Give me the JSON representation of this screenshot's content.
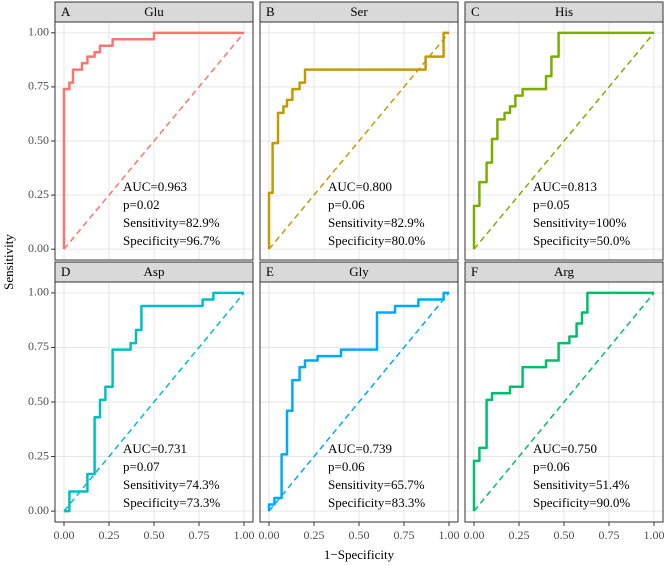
{
  "x_label": "1−Specificity",
  "y_label": "Sensitivity",
  "chart_data": [
    {
      "type": "line",
      "label": "A",
      "title": "Glu",
      "color": "#F8766D",
      "x": [
        0,
        0,
        0.03,
        0.03,
        0.05,
        0.05,
        0.1,
        0.1,
        0.13,
        0.13,
        0.17,
        0.17,
        0.2,
        0.2,
        0.27,
        0.27,
        0.5,
        0.5,
        1
      ],
      "y": [
        0,
        0.74,
        0.74,
        0.77,
        0.77,
        0.83,
        0.83,
        0.86,
        0.86,
        0.89,
        0.89,
        0.91,
        0.91,
        0.94,
        0.94,
        0.97,
        0.97,
        1,
        1
      ],
      "xlim": [
        -0.05,
        1.05
      ],
      "ylim": [
        -0.05,
        1.05
      ],
      "xticks": [
        {
          "value": 0,
          "label": "0.00"
        },
        {
          "value": 0.25,
          "label": "0.25"
        },
        {
          "value": 0.5,
          "label": "0.50"
        },
        {
          "value": 0.75,
          "label": "0.75"
        },
        {
          "value": 1,
          "label": "1.00"
        }
      ],
      "yticks": [
        {
          "value": 0,
          "label": "0.00"
        },
        {
          "value": 0.25,
          "label": "0.25"
        },
        {
          "value": 0.5,
          "label": "0.50"
        },
        {
          "value": 0.75,
          "label": "0.75"
        },
        {
          "value": 1,
          "label": "1.00"
        }
      ],
      "grid": true,
      "annotations": [
        "AUC=0.963",
        "p=0.02",
        "Sensitivity=82.9%",
        "Specificity=96.7%"
      ]
    },
    {
      "type": "line",
      "label": "B",
      "title": "Ser",
      "color": "#C49A00",
      "x": [
        0,
        0,
        0.02,
        0.02,
        0.05,
        0.05,
        0.08,
        0.08,
        0.1,
        0.1,
        0.13,
        0.13,
        0.17,
        0.17,
        0.2,
        0.2,
        0.87,
        0.87,
        0.97,
        0.97,
        1
      ],
      "y": [
        0,
        0.26,
        0.26,
        0.49,
        0.49,
        0.63,
        0.63,
        0.66,
        0.66,
        0.69,
        0.69,
        0.74,
        0.74,
        0.77,
        0.77,
        0.83,
        0.83,
        0.89,
        0.89,
        1,
        1
      ],
      "xlim": [
        -0.05,
        1.05
      ],
      "ylim": [
        -0.05,
        1.05
      ],
      "xticks": [
        {
          "value": 0,
          "label": "0.00"
        },
        {
          "value": 0.25,
          "label": "0.25"
        },
        {
          "value": 0.5,
          "label": "0.50"
        },
        {
          "value": 0.75,
          "label": "0.75"
        },
        {
          "value": 1,
          "label": "1.00"
        }
      ],
      "yticks": [
        {
          "value": 0,
          "label": "0.00"
        },
        {
          "value": 0.25,
          "label": "0.25"
        },
        {
          "value": 0.5,
          "label": "0.50"
        },
        {
          "value": 0.75,
          "label": "0.75"
        },
        {
          "value": 1,
          "label": "1.00"
        }
      ],
      "grid": true,
      "annotations": [
        "AUC=0.800",
        "p=0.06",
        "Sensitivity=82.9%",
        "Specificity=80.0%"
      ]
    },
    {
      "type": "line",
      "label": "C",
      "title": "His",
      "color": "#7CAE00",
      "x": [
        0,
        0,
        0.03,
        0.03,
        0.07,
        0.07,
        0.1,
        0.1,
        0.13,
        0.13,
        0.17,
        0.17,
        0.2,
        0.2,
        0.23,
        0.23,
        0.27,
        0.27,
        0.4,
        0.4,
        0.43,
        0.43,
        0.47,
        0.47,
        1
      ],
      "y": [
        0,
        0.2,
        0.2,
        0.31,
        0.31,
        0.4,
        0.4,
        0.51,
        0.51,
        0.6,
        0.6,
        0.63,
        0.63,
        0.66,
        0.66,
        0.71,
        0.71,
        0.74,
        0.74,
        0.8,
        0.8,
        0.89,
        0.89,
        1,
        1
      ],
      "xlim": [
        -0.05,
        1.05
      ],
      "ylim": [
        -0.05,
        1.05
      ],
      "xticks": [
        {
          "value": 0,
          "label": "0.00"
        },
        {
          "value": 0.25,
          "label": "0.25"
        },
        {
          "value": 0.5,
          "label": "0.50"
        },
        {
          "value": 0.75,
          "label": "0.75"
        },
        {
          "value": 1,
          "label": "1.00"
        }
      ],
      "yticks": [
        {
          "value": 0,
          "label": "0.00"
        },
        {
          "value": 0.25,
          "label": "0.25"
        },
        {
          "value": 0.5,
          "label": "0.50"
        },
        {
          "value": 0.75,
          "label": "0.75"
        },
        {
          "value": 1,
          "label": "1.00"
        }
      ],
      "grid": true,
      "annotations": [
        "AUC=0.813",
        "p=0.05",
        "Sensitivity=100%",
        "Specificity=50.0%"
      ]
    },
    {
      "type": "line",
      "label": "D",
      "title": "Asp",
      "color": "#00BFC4",
      "x": [
        0,
        0.03,
        0.03,
        0.13,
        0.13,
        0.17,
        0.17,
        0.2,
        0.2,
        0.23,
        0.23,
        0.27,
        0.27,
        0.37,
        0.37,
        0.4,
        0.4,
        0.43,
        0.43,
        0.77,
        0.77,
        0.83,
        0.83,
        1
      ],
      "y": [
        0,
        0,
        0.09,
        0.09,
        0.17,
        0.17,
        0.43,
        0.43,
        0.51,
        0.51,
        0.57,
        0.57,
        0.74,
        0.74,
        0.77,
        0.77,
        0.83,
        0.83,
        0.94,
        0.94,
        0.97,
        0.97,
        1,
        1
      ],
      "xlim": [
        -0.05,
        1.05
      ],
      "ylim": [
        -0.05,
        1.05
      ],
      "xticks": [
        {
          "value": 0,
          "label": "0.00"
        },
        {
          "value": 0.25,
          "label": "0.25"
        },
        {
          "value": 0.5,
          "label": "0.50"
        },
        {
          "value": 0.75,
          "label": "0.75"
        },
        {
          "value": 1,
          "label": "1.00"
        }
      ],
      "yticks": [
        {
          "value": 0,
          "label": "0.00"
        },
        {
          "value": 0.25,
          "label": "0.25"
        },
        {
          "value": 0.5,
          "label": "0.50"
        },
        {
          "value": 0.75,
          "label": "0.75"
        },
        {
          "value": 1,
          "label": "1.00"
        }
      ],
      "grid": true,
      "annotations": [
        "AUC=0.731",
        "p=0.07",
        "Sensitivity=74.3%",
        "Specificity=73.3%"
      ]
    },
    {
      "type": "line",
      "label": "E",
      "title": "Gly",
      "color": "#00A9FF",
      "x": [
        0,
        0,
        0.03,
        0.03,
        0.07,
        0.07,
        0.1,
        0.1,
        0.13,
        0.13,
        0.17,
        0.17,
        0.2,
        0.2,
        0.27,
        0.27,
        0.4,
        0.4,
        0.6,
        0.6,
        0.7,
        0.7,
        0.83,
        0.83,
        0.97,
        0.97,
        1
      ],
      "y": [
        0,
        0.03,
        0.03,
        0.06,
        0.06,
        0.26,
        0.26,
        0.46,
        0.46,
        0.6,
        0.6,
        0.66,
        0.66,
        0.69,
        0.69,
        0.71,
        0.71,
        0.74,
        0.74,
        0.91,
        0.91,
        0.94,
        0.94,
        0.97,
        0.97,
        1,
        1
      ],
      "xlim": [
        -0.05,
        1.05
      ],
      "ylim": [
        -0.05,
        1.05
      ],
      "xticks": [
        {
          "value": 0,
          "label": "0.00"
        },
        {
          "value": 0.25,
          "label": "0.25"
        },
        {
          "value": 0.5,
          "label": "0.50"
        },
        {
          "value": 0.75,
          "label": "0.75"
        },
        {
          "value": 1,
          "label": "1.00"
        }
      ],
      "yticks": [
        {
          "value": 0,
          "label": "0.00"
        },
        {
          "value": 0.25,
          "label": "0.25"
        },
        {
          "value": 0.5,
          "label": "0.50"
        },
        {
          "value": 0.75,
          "label": "0.75"
        },
        {
          "value": 1,
          "label": "1.00"
        }
      ],
      "grid": true,
      "annotations": [
        "AUC=0.739",
        "p=0.06",
        "Sensitivity=65.7%",
        "Specificity=83.3%"
      ]
    },
    {
      "type": "line",
      "label": "F",
      "title": "Arg",
      "color": "#00BE6C",
      "x": [
        0,
        0,
        0.03,
        0.03,
        0.07,
        0.07,
        0.1,
        0.1,
        0.2,
        0.2,
        0.27,
        0.27,
        0.4,
        0.4,
        0.47,
        0.47,
        0.53,
        0.53,
        0.57,
        0.57,
        0.6,
        0.6,
        0.63,
        0.63,
        1
      ],
      "y": [
        0,
        0.23,
        0.23,
        0.29,
        0.29,
        0.51,
        0.51,
        0.54,
        0.54,
        0.57,
        0.57,
        0.66,
        0.66,
        0.69,
        0.69,
        0.77,
        0.77,
        0.8,
        0.8,
        0.86,
        0.86,
        0.91,
        0.91,
        1,
        1
      ],
      "xlim": [
        -0.05,
        1.05
      ],
      "ylim": [
        -0.05,
        1.05
      ],
      "xticks": [
        {
          "value": 0,
          "label": "0.00"
        },
        {
          "value": 0.25,
          "label": "0.25"
        },
        {
          "value": 0.5,
          "label": "0.50"
        },
        {
          "value": 0.75,
          "label": "0.75"
        },
        {
          "value": 1,
          "label": "1.00"
        }
      ],
      "yticks": [
        {
          "value": 0,
          "label": "0.00"
        },
        {
          "value": 0.25,
          "label": "0.25"
        },
        {
          "value": 0.5,
          "label": "0.50"
        },
        {
          "value": 0.75,
          "label": "0.75"
        },
        {
          "value": 1,
          "label": "1.00"
        }
      ],
      "grid": true,
      "annotations": [
        "AUC=0.750",
        "p=0.06",
        "Sensitivity=51.4%",
        "Specificity=90.0%"
      ]
    }
  ]
}
